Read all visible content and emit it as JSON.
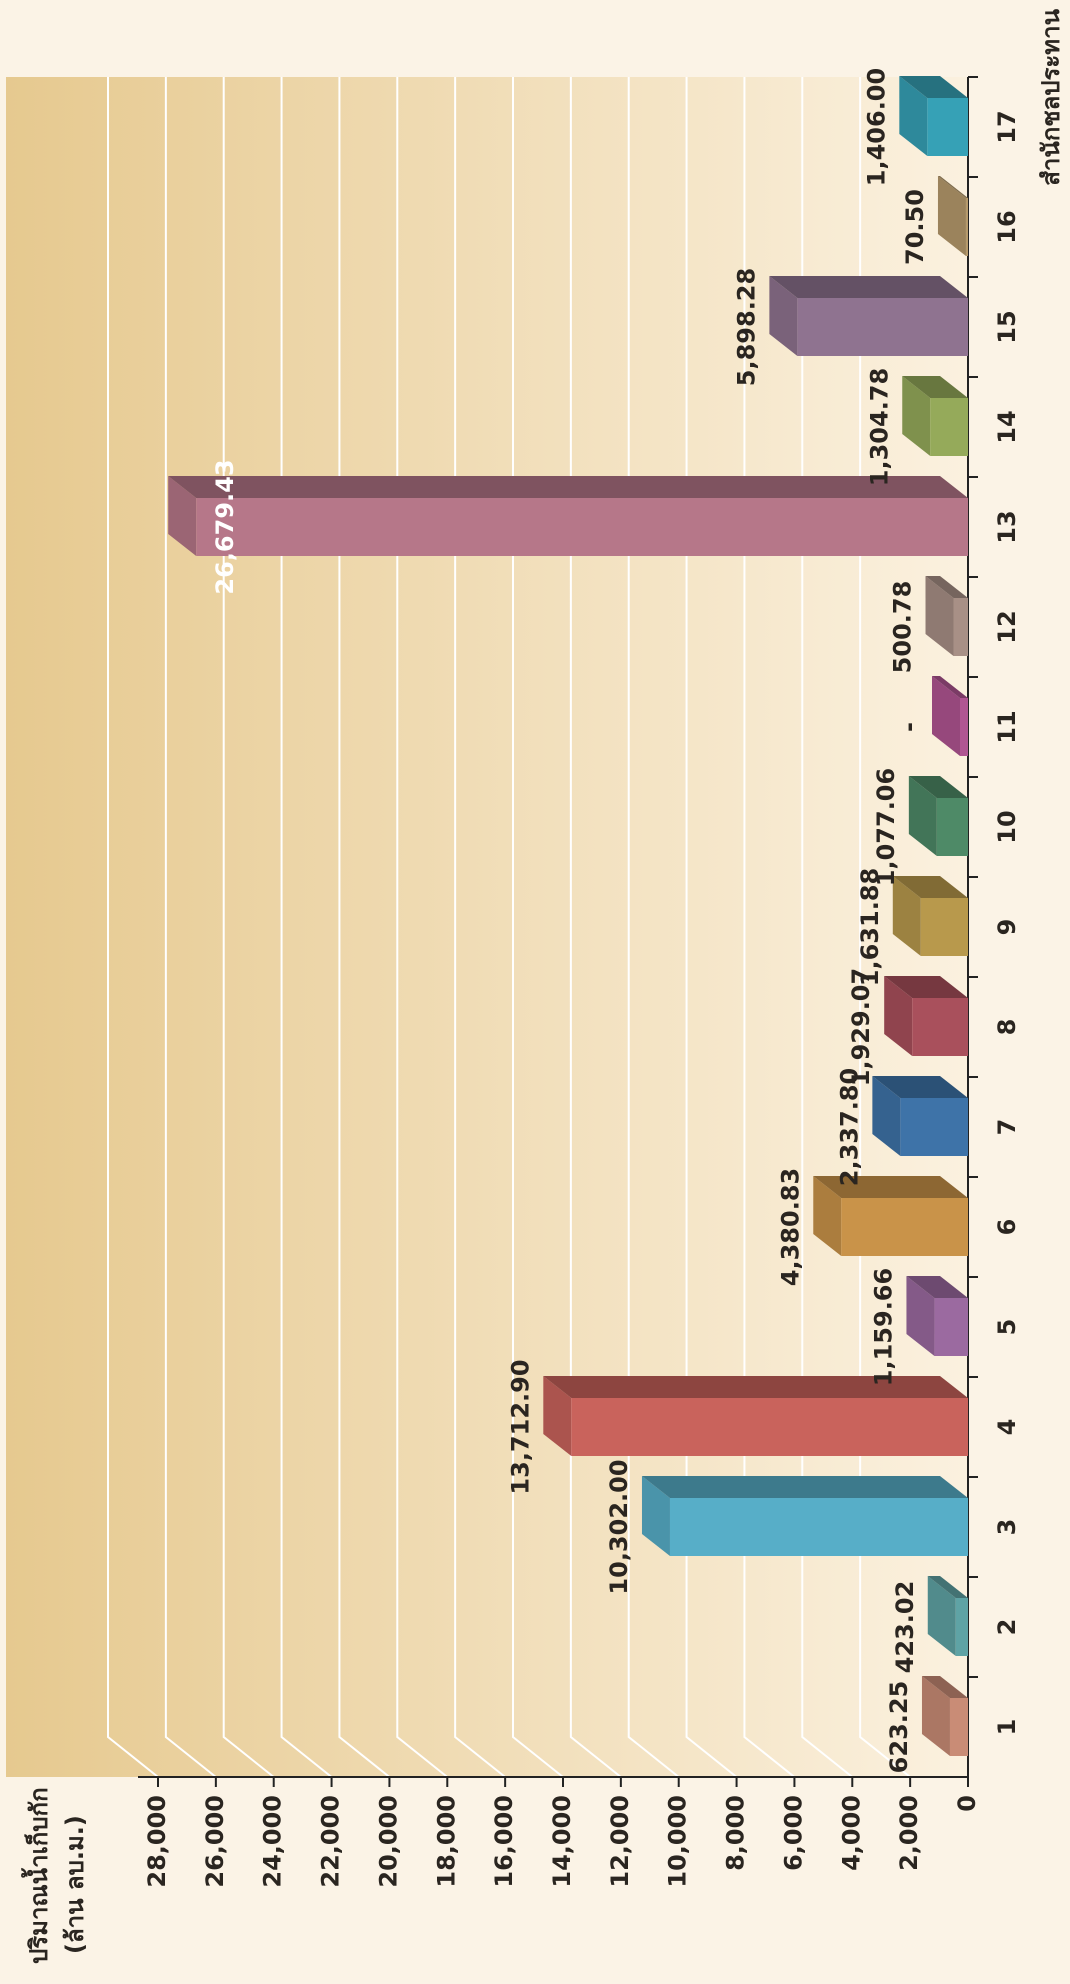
{
  "chart_data": {
    "type": "bar",
    "y_axis_title": [
      "ปริมาณน้ำเก็บกัก",
      "(ล้าน ลบ.ม.)"
    ],
    "x_axis_title": "สำนักชลประทาน",
    "categories": [
      "1",
      "2",
      "3",
      "4",
      "5",
      "6",
      "7",
      "8",
      "9",
      "10",
      "11",
      "12",
      "13",
      "14",
      "15",
      "16",
      "17"
    ],
    "values": [
      623.25,
      423.02,
      10302.0,
      13712.9,
      1159.66,
      4380.83,
      2337.8,
      1929.07,
      1631.88,
      1077.06,
      null,
      500.78,
      26679.43,
      1304.78,
      5898.28,
      70.5,
      1406.0
    ],
    "value_labels": [
      "623.25",
      "423.02",
      "10,302.00",
      "13,712.90",
      "1,159.66",
      "4,380.83",
      "2,337.80",
      "1,929.07",
      "1,631.88",
      "1,077.06",
      "-",
      "500.78",
      "26,679.43",
      "1,304.78",
      "5,898.28",
      "70.50",
      "1,406.00"
    ],
    "colors": [
      "#c98c76",
      "#5fa3a5",
      "#57aec8",
      "#c9635c",
      "#9b6aa0",
      "#c99349",
      "#3e73a8",
      "#a9505c",
      "#b8994c",
      "#4e8a67",
      "#b05592",
      "#a89086",
      "#b67789",
      "#95aa5a",
      "#8f7390",
      "#b69a6c",
      "#36a1b6"
    ],
    "ylim": [
      0,
      28000
    ],
    "yticks": [
      0,
      {
        "value": 2000,
        "label": "2,000"
      },
      {
        "value": 4000,
        "label": "4,000"
      },
      {
        "value": 6000,
        "label": "6,000"
      },
      {
        "value": 8000,
        "label": "8,000"
      },
      {
        "value": 10000,
        "label": "10,000"
      },
      {
        "value": 12000,
        "label": "12,000"
      },
      {
        "value": 14000,
        "label": "14,000"
      },
      {
        "value": 16000,
        "label": "16,000"
      },
      {
        "value": 18000,
        "label": "18,000"
      },
      {
        "value": 20000,
        "label": "20,000"
      },
      {
        "value": 22000,
        "label": "22,000"
      },
      {
        "value": 24000,
        "label": "24,000"
      },
      {
        "value": 26000,
        "label": "26,000"
      },
      {
        "value": 28000,
        "label": "28,000"
      }
    ],
    "grid": true
  }
}
